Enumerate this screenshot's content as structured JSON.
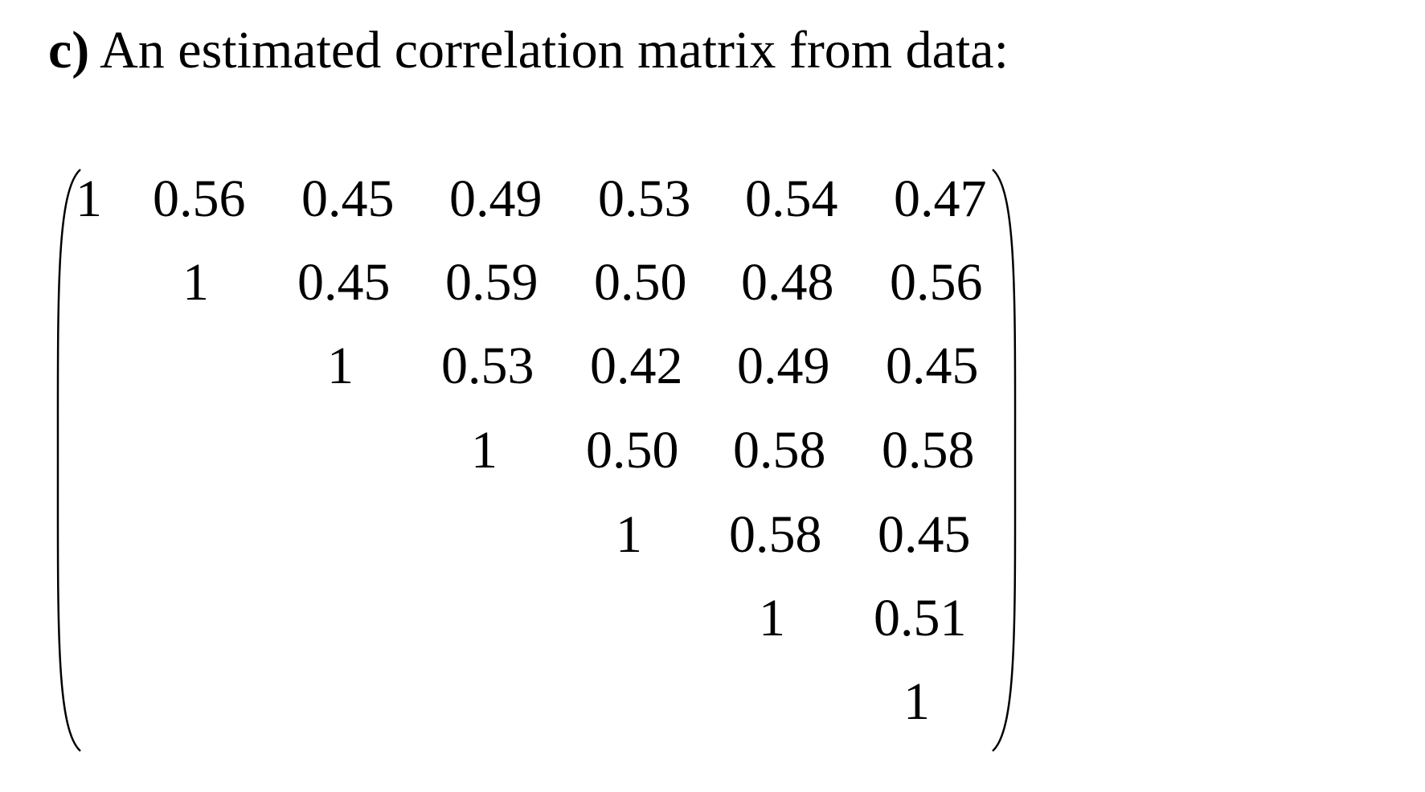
{
  "heading": {
    "label": "c)",
    "text": "An estimated correlation matrix from data:"
  },
  "matrix": {
    "rows": [
      [
        "1",
        "0.56",
        "0.45",
        "0.49",
        "0.53",
        "0.54",
        "0.47"
      ],
      [
        "",
        "1",
        "0.45",
        "0.59",
        "0.50",
        "0.48",
        "0.56"
      ],
      [
        "",
        "",
        "1",
        "0.53",
        "0.42",
        "0.49",
        "0.45"
      ],
      [
        "",
        "",
        "",
        "1",
        "0.50",
        "0.58",
        "0.58"
      ],
      [
        "",
        "",
        "",
        "",
        "1",
        "0.58",
        "0.45"
      ],
      [
        "",
        "",
        "",
        "",
        "",
        "1",
        "0.51"
      ],
      [
        "",
        "",
        "",
        "",
        "",
        "",
        "1"
      ]
    ]
  }
}
